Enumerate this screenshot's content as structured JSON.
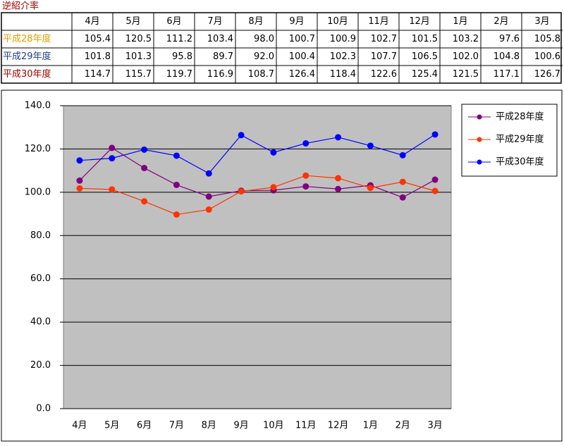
{
  "title": "逆紹介率",
  "chart_data": {
    "type": "line",
    "categories": [
      "4月",
      "5月",
      "6月",
      "7月",
      "8月",
      "9月",
      "10月",
      "11月",
      "12月",
      "1月",
      "2月",
      "3月"
    ],
    "series": [
      {
        "name": "平成28年度",
        "color": "#800080",
        "table_label_color": "#e0a000",
        "values": [
          105.4,
          120.5,
          111.2,
          103.4,
          98.0,
          100.7,
          100.9,
          102.7,
          101.5,
          103.2,
          97.6,
          105.8
        ],
        "value_labels": [
          "105.4",
          "120.5",
          "111.2",
          "103.4",
          "98.0",
          "100.7",
          "100.9",
          "102.7",
          "101.5",
          "103.2",
          "97.6",
          "105.8"
        ]
      },
      {
        "name": "平成29年度",
        "color": "#ff3300",
        "table_label_color": "#1f3f8f",
        "values": [
          101.8,
          101.3,
          95.8,
          89.7,
          92.0,
          100.4,
          102.3,
          107.7,
          106.5,
          102.0,
          104.8,
          100.6
        ],
        "value_labels": [
          "101.8",
          "101.3",
          "95.8",
          "89.7",
          "92.0",
          "100.4",
          "102.3",
          "107.7",
          "106.5",
          "102.0",
          "104.8",
          "100.6"
        ]
      },
      {
        "name": "平成30年度",
        "color": "#0000ff",
        "table_label_color": "#a00000",
        "values": [
          114.7,
          115.7,
          119.7,
          116.9,
          108.7,
          126.4,
          118.4,
          122.6,
          125.4,
          121.5,
          117.1,
          126.7
        ],
        "value_labels": [
          "114.7",
          "115.7",
          "119.7",
          "116.9",
          "108.7",
          "126.4",
          "118.4",
          "122.6",
          "125.4",
          "121.5",
          "117.1",
          "126.7"
        ]
      }
    ],
    "ylim": [
      0,
      140
    ],
    "yticks": [
      {
        "value": 0,
        "label": "0.0"
      },
      {
        "value": 20,
        "label": "20.0"
      },
      {
        "value": 40,
        "label": "40.0"
      },
      {
        "value": 60,
        "label": "60.0"
      },
      {
        "value": 80,
        "label": "80.0"
      },
      {
        "value": 100,
        "label": "100.0"
      },
      {
        "value": 120,
        "label": "120.0"
      },
      {
        "value": 140,
        "label": "140.0"
      }
    ],
    "grid": true,
    "legend": "right"
  }
}
